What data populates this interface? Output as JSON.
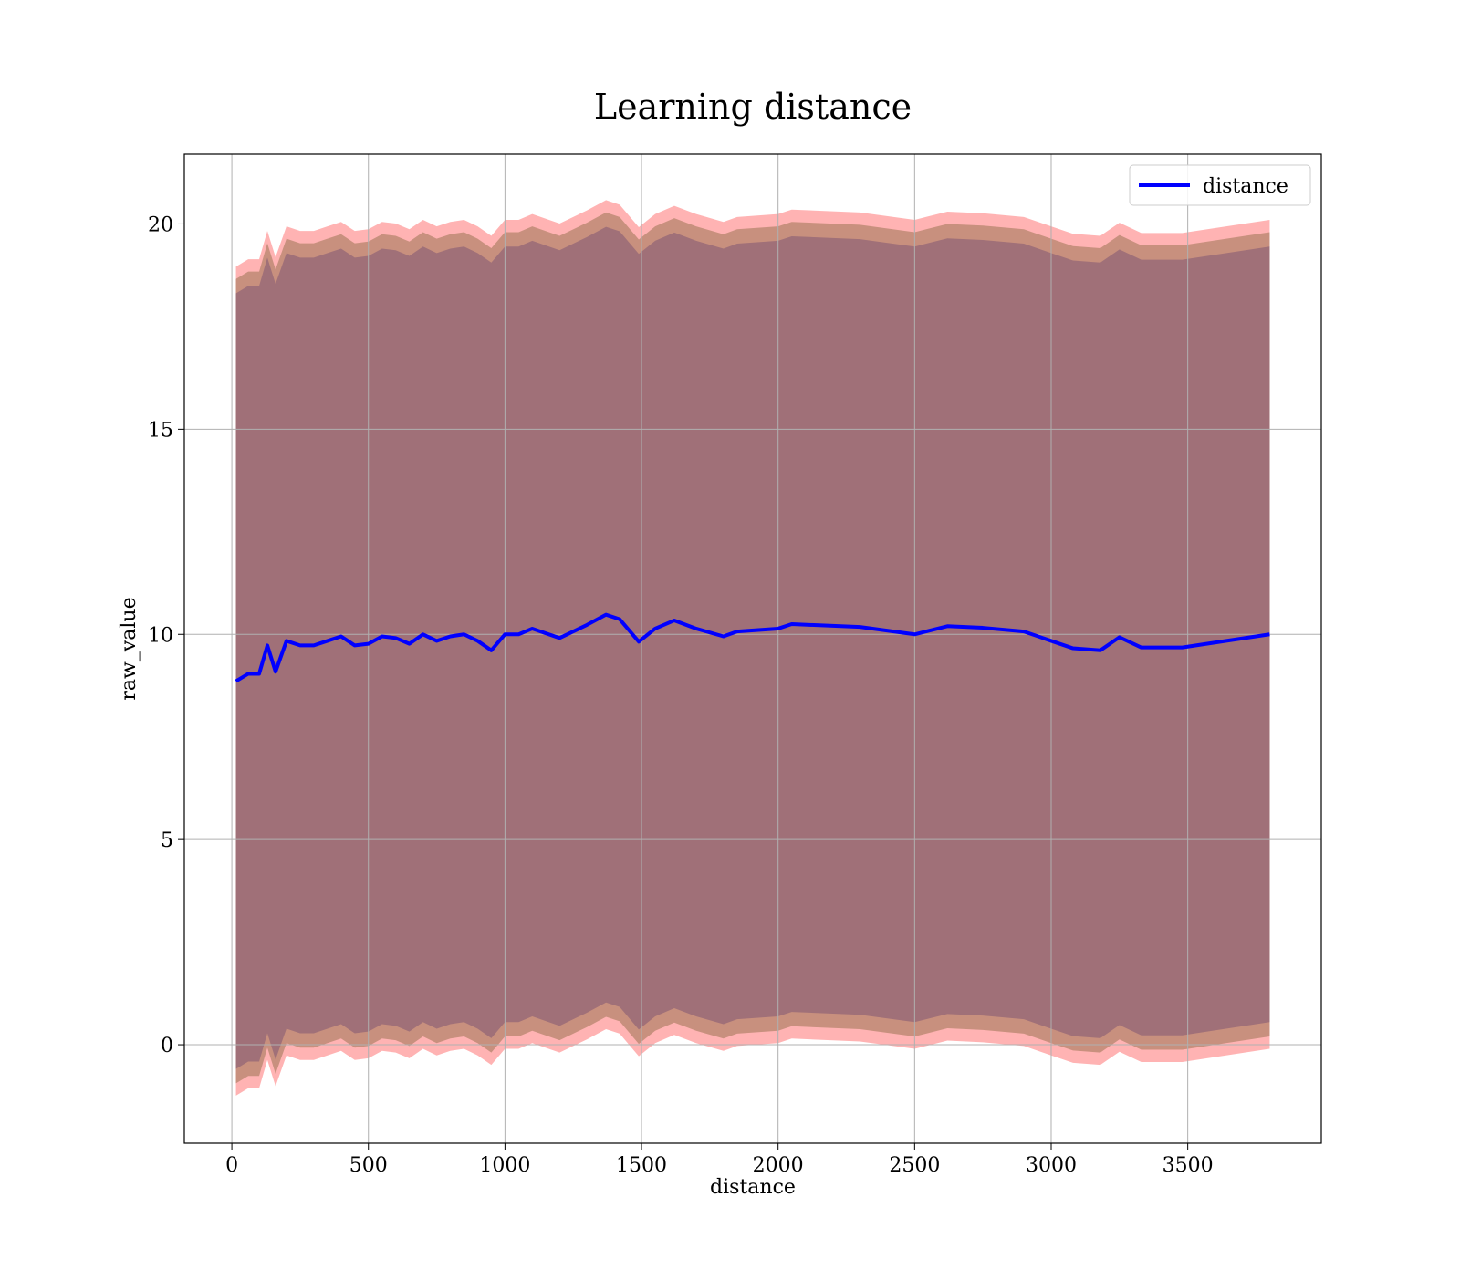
{
  "chart_data": {
    "type": "line",
    "title": "Learning distance",
    "xlabel": "distance",
    "ylabel": "raw_value",
    "x": [
      15,
      60,
      100,
      130,
      160,
      200,
      250,
      300,
      350,
      400,
      450,
      500,
      550,
      600,
      650,
      700,
      750,
      800,
      850,
      900,
      950,
      1000,
      1050,
      1100,
      1200,
      1300,
      1370,
      1420,
      1490,
      1550,
      1620,
      1700,
      1800,
      1850,
      2000,
      2050,
      2300,
      2500,
      2620,
      2750,
      2900,
      3000,
      3080,
      3180,
      3250,
      3330,
      3480,
      3800
    ],
    "series": [
      {
        "name": "distance",
        "color": "#0000ff",
        "values": [
          8.86,
          9.04,
          9.04,
          9.73,
          9.09,
          9.84,
          9.73,
          9.73,
          9.84,
          9.95,
          9.73,
          9.77,
          9.95,
          9.91,
          9.77,
          10.0,
          9.84,
          9.95,
          10.0,
          9.84,
          9.61,
          10.0,
          10.0,
          10.14,
          9.91,
          10.23,
          10.48,
          10.37,
          9.82,
          10.14,
          10.34,
          10.14,
          9.95,
          10.07,
          10.14,
          10.25,
          10.18,
          10.0,
          10.2,
          10.16,
          10.07,
          9.84,
          9.66,
          9.61,
          9.93,
          9.68,
          9.68,
          10.0
        ]
      }
    ],
    "bands": [
      {
        "color": "#ffb3b3",
        "upper": [
          18.96,
          19.14,
          19.14,
          19.83,
          19.19,
          19.94,
          19.83,
          19.83,
          19.94,
          20.05,
          19.83,
          19.87,
          20.05,
          20.01,
          19.87,
          20.1,
          19.94,
          20.05,
          20.1,
          19.94,
          19.71,
          20.1,
          20.1,
          20.24,
          20.01,
          20.33,
          20.58,
          20.47,
          19.92,
          20.24,
          20.44,
          20.24,
          20.05,
          20.17,
          20.24,
          20.35,
          20.28,
          20.1,
          20.3,
          20.26,
          20.17,
          19.94,
          19.76,
          19.71,
          20.03,
          19.78,
          19.78,
          20.1
        ],
        "lower": [
          -1.24,
          -1.06,
          -1.06,
          -0.37,
          -1.01,
          -0.26,
          -0.37,
          -0.37,
          -0.26,
          -0.15,
          -0.37,
          -0.33,
          -0.15,
          -0.19,
          -0.33,
          -0.1,
          -0.26,
          -0.15,
          -0.1,
          -0.26,
          -0.49,
          -0.1,
          -0.1,
          0.04,
          -0.19,
          0.13,
          0.38,
          0.27,
          -0.28,
          0.04,
          0.24,
          0.04,
          -0.15,
          -0.03,
          0.04,
          0.15,
          0.08,
          -0.1,
          0.1,
          0.06,
          -0.03,
          -0.26,
          -0.44,
          -0.49,
          -0.17,
          -0.42,
          -0.42,
          -0.1
        ]
      },
      {
        "color": "#c8907e",
        "upper": [
          18.66,
          18.84,
          18.84,
          19.53,
          18.89,
          19.64,
          19.53,
          19.53,
          19.64,
          19.75,
          19.53,
          19.57,
          19.75,
          19.71,
          19.57,
          19.8,
          19.64,
          19.75,
          19.8,
          19.64,
          19.41,
          19.8,
          19.8,
          19.94,
          19.71,
          20.03,
          20.28,
          20.17,
          19.62,
          19.94,
          20.14,
          19.94,
          19.75,
          19.87,
          19.94,
          20.05,
          19.98,
          19.8,
          20.0,
          19.96,
          19.87,
          19.64,
          19.46,
          19.41,
          19.73,
          19.48,
          19.48,
          19.8
        ],
        "lower": [
          -0.94,
          -0.76,
          -0.76,
          -0.07,
          -0.71,
          0.04,
          -0.07,
          -0.07,
          0.04,
          0.15,
          -0.07,
          -0.03,
          0.15,
          0.11,
          -0.03,
          0.2,
          0.04,
          0.15,
          0.2,
          0.04,
          -0.19,
          0.2,
          0.2,
          0.34,
          0.11,
          0.43,
          0.68,
          0.57,
          0.02,
          0.34,
          0.54,
          0.34,
          0.15,
          0.27,
          0.34,
          0.45,
          0.38,
          0.2,
          0.4,
          0.36,
          0.27,
          0.04,
          -0.14,
          -0.19,
          0.13,
          -0.12,
          -0.12,
          0.2
        ]
      },
      {
        "color": "#a07078",
        "upper": [
          18.31,
          18.49,
          18.49,
          19.18,
          18.54,
          19.29,
          19.18,
          19.18,
          19.29,
          19.4,
          19.18,
          19.22,
          19.4,
          19.36,
          19.22,
          19.45,
          19.29,
          19.4,
          19.45,
          19.29,
          19.06,
          19.45,
          19.45,
          19.59,
          19.36,
          19.68,
          19.93,
          19.82,
          19.27,
          19.59,
          19.79,
          19.59,
          19.4,
          19.52,
          19.59,
          19.7,
          19.63,
          19.45,
          19.65,
          19.61,
          19.52,
          19.29,
          19.11,
          19.06,
          19.38,
          19.13,
          19.13,
          19.45
        ],
        "lower": [
          -0.59,
          -0.41,
          -0.41,
          0.28,
          -0.36,
          0.39,
          0.28,
          0.28,
          0.39,
          0.5,
          0.28,
          0.32,
          0.5,
          0.46,
          0.32,
          0.55,
          0.39,
          0.5,
          0.55,
          0.39,
          0.16,
          0.55,
          0.55,
          0.69,
          0.46,
          0.78,
          1.03,
          0.92,
          0.37,
          0.69,
          0.89,
          0.69,
          0.5,
          0.62,
          0.69,
          0.8,
          0.73,
          0.55,
          0.75,
          0.71,
          0.62,
          0.39,
          0.21,
          0.16,
          0.48,
          0.23,
          0.23,
          0.55
        ]
      }
    ],
    "xlim": [
      -174,
      3989
    ],
    "ylim": [
      -2.4,
      21.7
    ],
    "xticks": [
      0,
      500,
      1000,
      1500,
      2000,
      2500,
      3000,
      3500
    ],
    "yticks": [
      0,
      5,
      10,
      15,
      20
    ],
    "grid": true,
    "legend": "upper right"
  }
}
